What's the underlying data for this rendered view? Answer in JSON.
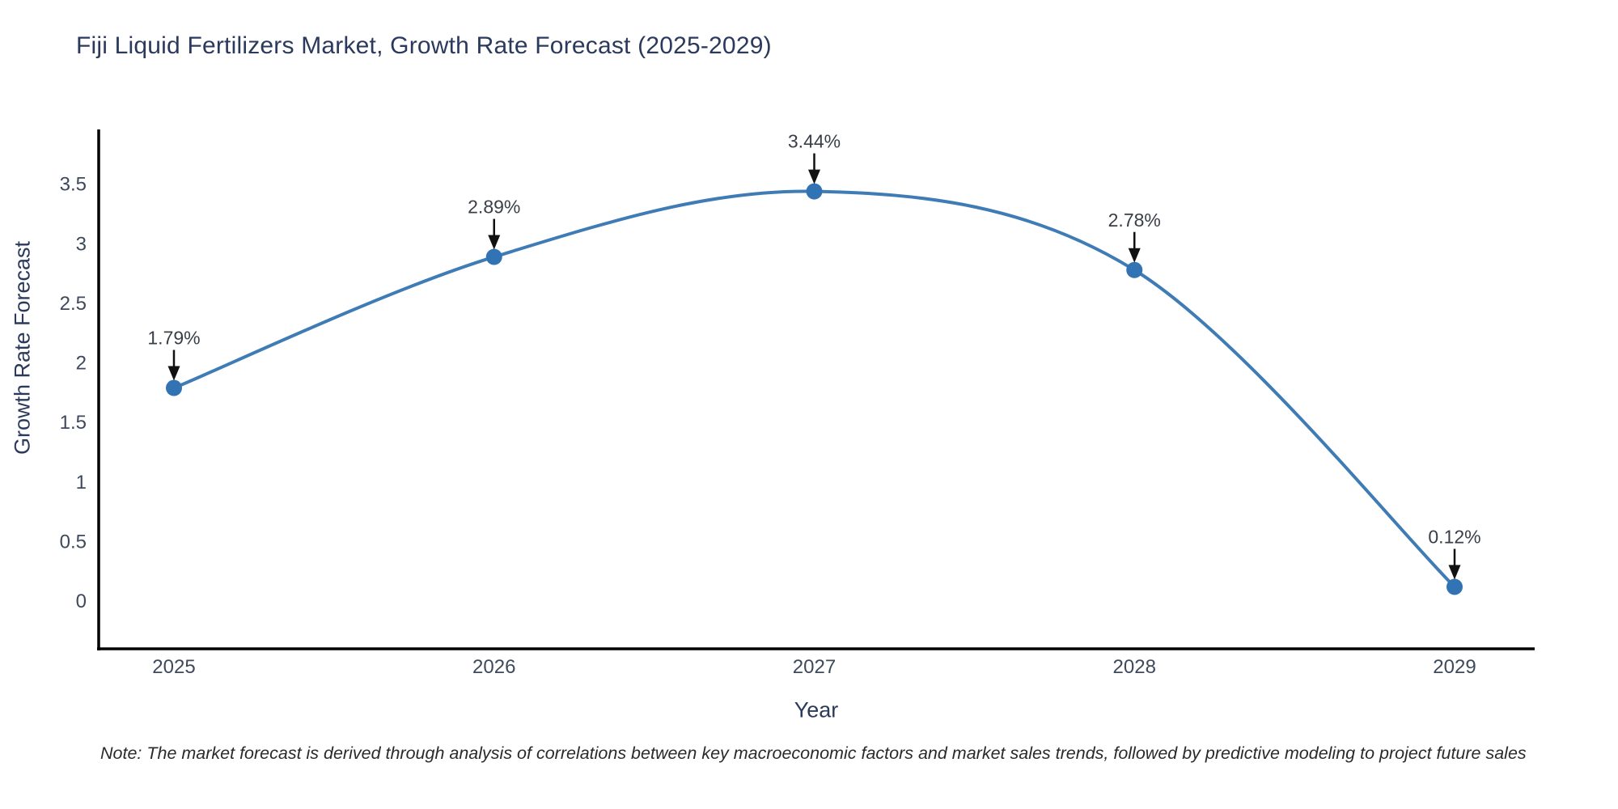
{
  "chart_data": {
    "type": "line",
    "title": "Fiji Liquid Fertilizers Market, Growth Rate Forecast (2025-2029)",
    "xlabel": "Year",
    "ylabel": "Growth Rate Forecast",
    "categories": [
      "2025",
      "2026",
      "2027",
      "2028",
      "2029"
    ],
    "series": [
      {
        "name": "Growth Rate Forecast",
        "values": [
          1.79,
          2.89,
          3.44,
          2.78,
          0.12
        ],
        "point_labels": [
          "1.79%",
          "2.89%",
          "3.44%",
          "2.78%",
          "0.12%"
        ]
      }
    ],
    "yticks": [
      0,
      0.5,
      1,
      1.5,
      2,
      2.5,
      3,
      3.5
    ],
    "ylim": [
      -0.4,
      3.96
    ],
    "grid": false,
    "legend_position": "none",
    "line_shape": "spline",
    "markers": "circle",
    "annotations": "value labels with down arrows above each point",
    "colors": {
      "line": "#3f7cb5",
      "marker": "#3273b3",
      "axis_line": "#000000",
      "title_text": "#2b3a5c",
      "axis_title_text": "#2b3a5c",
      "tick_text": "#3e4a5c",
      "annotation_text": "#3a3f47",
      "arrow": "#111111",
      "background": "#ffffff"
    }
  },
  "note": {
    "text": "Note: The market forecast is derived through analysis of correlations between key macroeconomic factors and market sales trends, followed by predictive modeling to project future sales"
  }
}
